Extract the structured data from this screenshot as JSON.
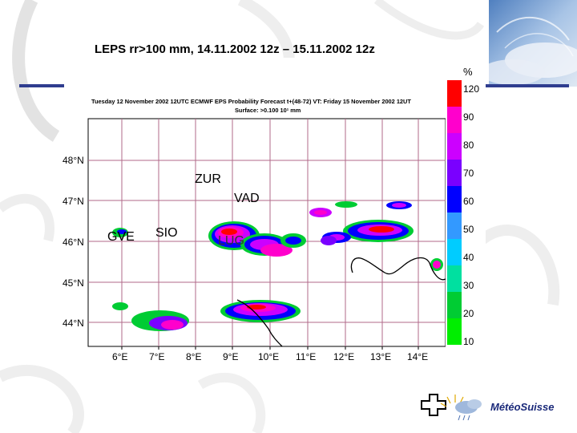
{
  "slide": {
    "title": "LEPS rr>100 mm, 14.11.2002 12z – 15.11.2002 12z"
  },
  "map": {
    "header_line1": "Tuesday 12 November 2002 12UTC ECMWF  EPS Probability Forecast t+(48-72) VT: Friday 15 November 2002 12UT",
    "header_line2": "Surface:  >0.100 10¹ mm",
    "lat_labels": [
      "48°N",
      "47°N",
      "46°N",
      "45°N",
      "44°N"
    ],
    "lon_labels": [
      "6°E",
      "7°E",
      "8°E",
      "9°E",
      "10°E",
      "11°E",
      "12°E",
      "13°E",
      "14°E"
    ],
    "cities": {
      "zur": "ZUR",
      "vad": "VAD",
      "gve": "GVE",
      "sio": "SIO",
      "lug": "LUG"
    }
  },
  "colorbar": {
    "unit": "%",
    "levels": [
      "120",
      "90",
      "80",
      "70",
      "60",
      "50",
      "40",
      "30",
      "20",
      "10"
    ],
    "colors": [
      "#ff0000",
      "#ff00cc",
      "#cc00ff",
      "#7a00ff",
      "#0000ff",
      "#3399ff",
      "#00ccff",
      "#00e0a0",
      "#00cc33",
      "#00ee00"
    ]
  },
  "logo": {
    "text": "MétéoSuisse"
  }
}
